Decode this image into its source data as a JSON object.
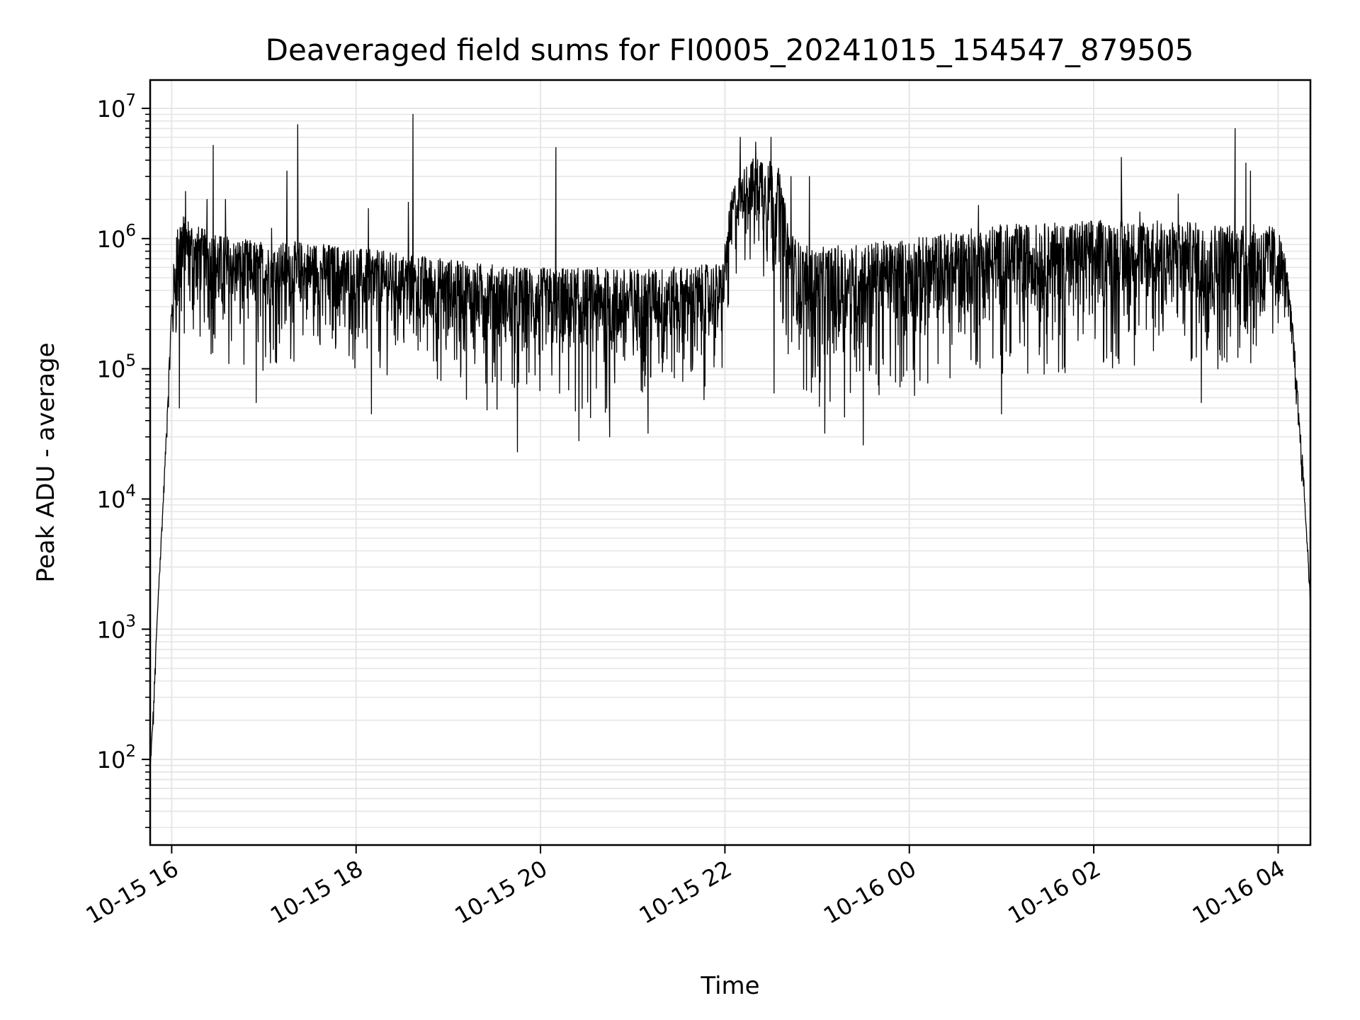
{
  "chart_data": {
    "type": "line",
    "title": "Deaveraged field sums for FI0005_20241015_154547_879505",
    "xlabel": "Time",
    "ylabel": "Peak ADU - average",
    "y_scale": "log",
    "ylim": [
      22,
      16500000
    ],
    "xlim": [
      "2024-10-15 15:46",
      "2024-10-16 04:21"
    ],
    "grid": true,
    "line_color": "#000000",
    "grid_color": "#e6e6e6",
    "x_ticks": [
      {
        "value": "2024-10-15 16:00",
        "label": "10-15 16"
      },
      {
        "value": "2024-10-15 18:00",
        "label": "10-15 18"
      },
      {
        "value": "2024-10-15 20:00",
        "label": "10-15 20"
      },
      {
        "value": "2024-10-15 22:00",
        "label": "10-15 22"
      },
      {
        "value": "2024-10-16 00:00",
        "label": "10-16 00"
      },
      {
        "value": "2024-10-16 02:00",
        "label": "10-16 02"
      },
      {
        "value": "2024-10-16 04:00",
        "label": "10-16 04"
      }
    ],
    "y_ticks": [
      {
        "value": 100,
        "base": "10",
        "exp": "2"
      },
      {
        "value": 1000,
        "base": "10",
        "exp": "3"
      },
      {
        "value": 10000,
        "base": "10",
        "exp": "4"
      },
      {
        "value": 100000,
        "base": "10",
        "exp": "5"
      },
      {
        "value": 1000000,
        "base": "10",
        "exp": "6"
      },
      {
        "value": 10000000,
        "base": "10",
        "exp": "7"
      }
    ],
    "series": [
      {
        "x": [
          "2024-10-15 15:46",
          "2024-10-15 15:48",
          "2024-10-15 15:50",
          "2024-10-15 15:52",
          "2024-10-15 15:54",
          "2024-10-15 15:56",
          "2024-10-15 15:58",
          "2024-10-15 16:00",
          "2024-10-15 16:03",
          "2024-10-15 16:06",
          "2024-10-15 16:09",
          "2024-10-15 16:12",
          "2024-10-15 16:15",
          "2024-10-15 16:20",
          "2024-10-15 16:30",
          "2024-10-15 16:45",
          "2024-10-15 17:00",
          "2024-10-15 17:15",
          "2024-10-15 17:30",
          "2024-10-15 17:45",
          "2024-10-15 18:00",
          "2024-10-15 18:20",
          "2024-10-15 18:40",
          "2024-10-15 19:00",
          "2024-10-15 19:20",
          "2024-10-15 19:40",
          "2024-10-15 20:00",
          "2024-10-15 20:20",
          "2024-10-15 20:40",
          "2024-10-15 21:00",
          "2024-10-15 21:20",
          "2024-10-15 21:40",
          "2024-10-15 21:58",
          "2024-10-15 22:05",
          "2024-10-15 22:15",
          "2024-10-15 22:25",
          "2024-10-15 22:35",
          "2024-10-15 22:42",
          "2024-10-15 22:50",
          "2024-10-15 23:00",
          "2024-10-15 23:20",
          "2024-10-15 23:40",
          "2024-10-16 00:00",
          "2024-10-16 00:20",
          "2024-10-16 00:40",
          "2024-10-16 01:00",
          "2024-10-16 01:20",
          "2024-10-16 01:40",
          "2024-10-16 02:00",
          "2024-10-16 02:20",
          "2024-10-16 02:40",
          "2024-10-16 03:00",
          "2024-10-16 03:20",
          "2024-10-16 03:40",
          "2024-10-16 04:00",
          "2024-10-16 04:05",
          "2024-10-16 04:10",
          "2024-10-16 04:13",
          "2024-10-16 04:16",
          "2024-10-16 04:19",
          "2024-10-16 04:21"
        ],
        "hi": [
          90,
          250,
          900,
          3000,
          8000,
          25000,
          90000,
          400000,
          1200000,
          1600000,
          1500000,
          1400000,
          1300000,
          1200000,
          1100000,
          1000000,
          950000,
          950000,
          950000,
          900000,
          850000,
          800000,
          750000,
          700000,
          650000,
          620000,
          600000,
          600000,
          600000,
          600000,
          600000,
          620000,
          650000,
          2500000,
          4000000,
          4500000,
          3500000,
          1200000,
          900000,
          850000,
          900000,
          950000,
          1000000,
          1100000,
          1200000,
          1300000,
          1300000,
          1350000,
          1400000,
          1400000,
          1400000,
          1350000,
          1300000,
          1300000,
          1250000,
          700000,
          200000,
          60000,
          20000,
          5000,
          1700
        ],
        "lo": [
          60,
          150,
          600,
          2000,
          5000,
          15000,
          50000,
          70000,
          100000,
          120000,
          120000,
          120000,
          120000,
          110000,
          100000,
          90000,
          90000,
          90000,
          90000,
          90000,
          80000,
          80000,
          70000,
          60000,
          50000,
          40000,
          35000,
          35000,
          35000,
          40000,
          45000,
          50000,
          60000,
          400000,
          500000,
          400000,
          300000,
          80000,
          50000,
          40000,
          40000,
          50000,
          50000,
          60000,
          70000,
          80000,
          80000,
          80000,
          80000,
          80000,
          80000,
          80000,
          80000,
          80000,
          80000,
          200000,
          80000,
          30000,
          10000,
          3000,
          1500
        ]
      }
    ],
    "spikes": [
      {
        "t": "2024-10-15 16:09",
        "v": 2300000
      },
      {
        "t": "2024-10-15 16:23",
        "v": 2000000
      },
      {
        "t": "2024-10-15 16:27",
        "v": 5200000
      },
      {
        "t": "2024-10-15 16:35",
        "v": 2000000
      },
      {
        "t": "2024-10-15 17:05",
        "v": 1200000
      },
      {
        "t": "2024-10-15 17:15",
        "v": 3300000
      },
      {
        "t": "2024-10-15 17:22",
        "v": 7500000
      },
      {
        "t": "2024-10-15 18:08",
        "v": 1700000
      },
      {
        "t": "2024-10-15 18:34",
        "v": 1900000
      },
      {
        "t": "2024-10-15 18:37",
        "v": 9000000
      },
      {
        "t": "2024-10-15 20:10",
        "v": 5000000
      },
      {
        "t": "2024-10-15 22:10",
        "v": 6000000
      },
      {
        "t": "2024-10-15 22:20",
        "v": 5500000
      },
      {
        "t": "2024-10-15 22:30",
        "v": 6000000
      },
      {
        "t": "2024-10-15 22:43",
        "v": 3000000
      },
      {
        "t": "2024-10-15 22:55",
        "v": 3000000
      },
      {
        "t": "2024-10-16 00:45",
        "v": 1800000
      },
      {
        "t": "2024-10-16 02:18",
        "v": 4200000
      },
      {
        "t": "2024-10-16 02:30",
        "v": 1600000
      },
      {
        "t": "2024-10-16 02:55",
        "v": 2200000
      },
      {
        "t": "2024-10-16 03:32",
        "v": 7000000
      },
      {
        "t": "2024-10-16 03:39",
        "v": 3800000
      },
      {
        "t": "2024-10-16 03:42",
        "v": 3300000
      }
    ],
    "dips": [
      {
        "t": "2024-10-15 16:05",
        "v": 50000
      },
      {
        "t": "2024-10-15 16:55",
        "v": 55000
      },
      {
        "t": "2024-10-15 18:10",
        "v": 45000
      },
      {
        "t": "2024-10-15 19:45",
        "v": 23000
      },
      {
        "t": "2024-10-15 20:25",
        "v": 28000
      },
      {
        "t": "2024-10-15 20:45",
        "v": 30000
      },
      {
        "t": "2024-10-15 21:10",
        "v": 32000
      },
      {
        "t": "2024-10-15 22:32",
        "v": 65000
      },
      {
        "t": "2024-10-15 23:05",
        "v": 32000
      },
      {
        "t": "2024-10-15 23:30",
        "v": 26000
      },
      {
        "t": "2024-10-16 01:00",
        "v": 45000
      },
      {
        "t": "2024-10-16 03:10",
        "v": 55000
      }
    ]
  }
}
